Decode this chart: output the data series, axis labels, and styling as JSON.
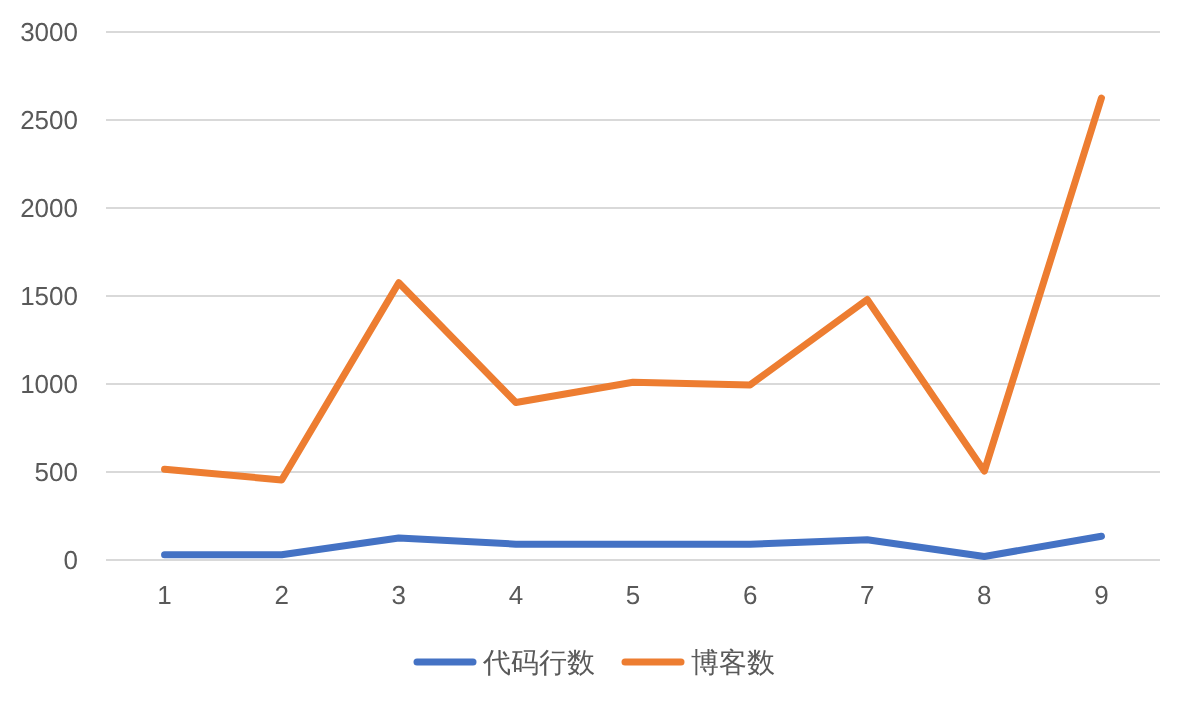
{
  "chart_data": {
    "type": "line",
    "categories": [
      "1",
      "2",
      "3",
      "4",
      "5",
      "6",
      "7",
      "8",
      "9"
    ],
    "series": [
      {
        "name": "代码行数",
        "color": "#4472c4",
        "values": [
          30,
          30,
          125,
          90,
          90,
          90,
          115,
          20,
          135
        ]
      },
      {
        "name": "博客数",
        "color": "#ed7d31",
        "values": [
          515,
          455,
          1575,
          895,
          1010,
          995,
          1480,
          505,
          2625
        ]
      }
    ],
    "ylim": [
      0,
      3000
    ],
    "yticks": [
      0,
      500,
      1000,
      1500,
      2000,
      2500,
      3000
    ],
    "grid": "y",
    "legend": "bottom"
  }
}
